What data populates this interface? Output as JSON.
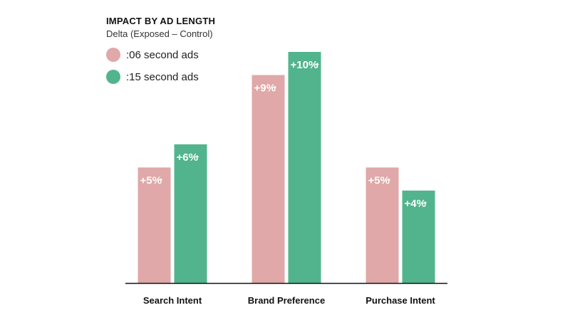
{
  "chart_data": {
    "type": "bar",
    "title": "IMPACT BY AD LENGTH",
    "subtitle": "Delta (Exposed – Control)",
    "categories": [
      "Search Intent",
      "Brand Preference",
      "Purchase Intent"
    ],
    "series": [
      {
        "name": ":06 second ads",
        "color": "#e0a8a8",
        "values": [
          5,
          9,
          5
        ],
        "labels": [
          "+5%",
          "+9%",
          "+5%"
        ]
      },
      {
        "name": ":15 second ads",
        "color": "#52b48d",
        "values": [
          6,
          10,
          4
        ],
        "labels": [
          "+6%",
          "+10%",
          "+4%"
        ]
      }
    ],
    "ylim": [
      0,
      10
    ],
    "grid": false,
    "legend_position": "top-left",
    "label_suffix_icon": "up-arrow-icon"
  }
}
